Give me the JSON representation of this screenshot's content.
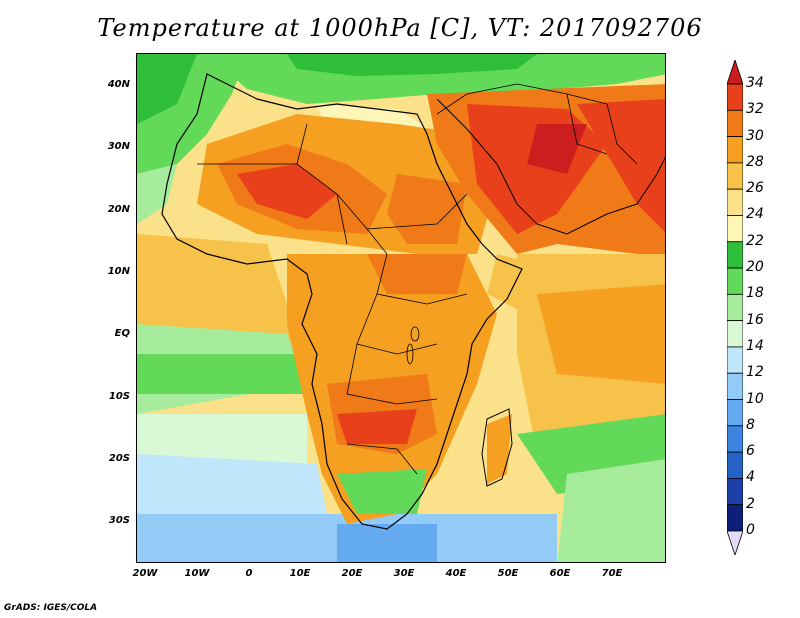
{
  "title": "Temperature at 1000hPa [C], VT: 2017092706",
  "credit": "GrADS: IGES/COLA",
  "lat_labels": [
    "40N",
    "30N",
    "20N",
    "10N",
    "EQ",
    "10S",
    "20S",
    "30S"
  ],
  "lon_labels": [
    "20W",
    "10W",
    "0",
    "10E",
    "20E",
    "30E",
    "40E",
    "50E",
    "60E",
    "70E"
  ],
  "colorbar": {
    "levels": [
      "34",
      "32",
      "30",
      "28",
      "26",
      "24",
      "22",
      "20",
      "18",
      "16",
      "14",
      "12",
      "10",
      "8",
      "6",
      "4",
      "2",
      "0"
    ],
    "colors": [
      "#cc1e1e",
      "#e7401a",
      "#f07918",
      "#f5a020",
      "#f7c24a",
      "#fbe28a",
      "#fdf6b6",
      "#2fbe3a",
      "#63d95a",
      "#a6ec9c",
      "#d8f8d6",
      "#bfe6fb",
      "#91cbf6",
      "#64aaf0",
      "#3b85e0",
      "#2563c8",
      "#1c3fa8",
      "#0d1f78",
      "#e3dbf7"
    ]
  },
  "map": {
    "region": "Africa, Middle East and South Asia",
    "lat_range": [
      -36,
      45
    ],
    "lon_range": [
      -22,
      80
    ],
    "variable": "Temperature at 1000hPa",
    "units": "C",
    "valid_time": "2017092706"
  }
}
